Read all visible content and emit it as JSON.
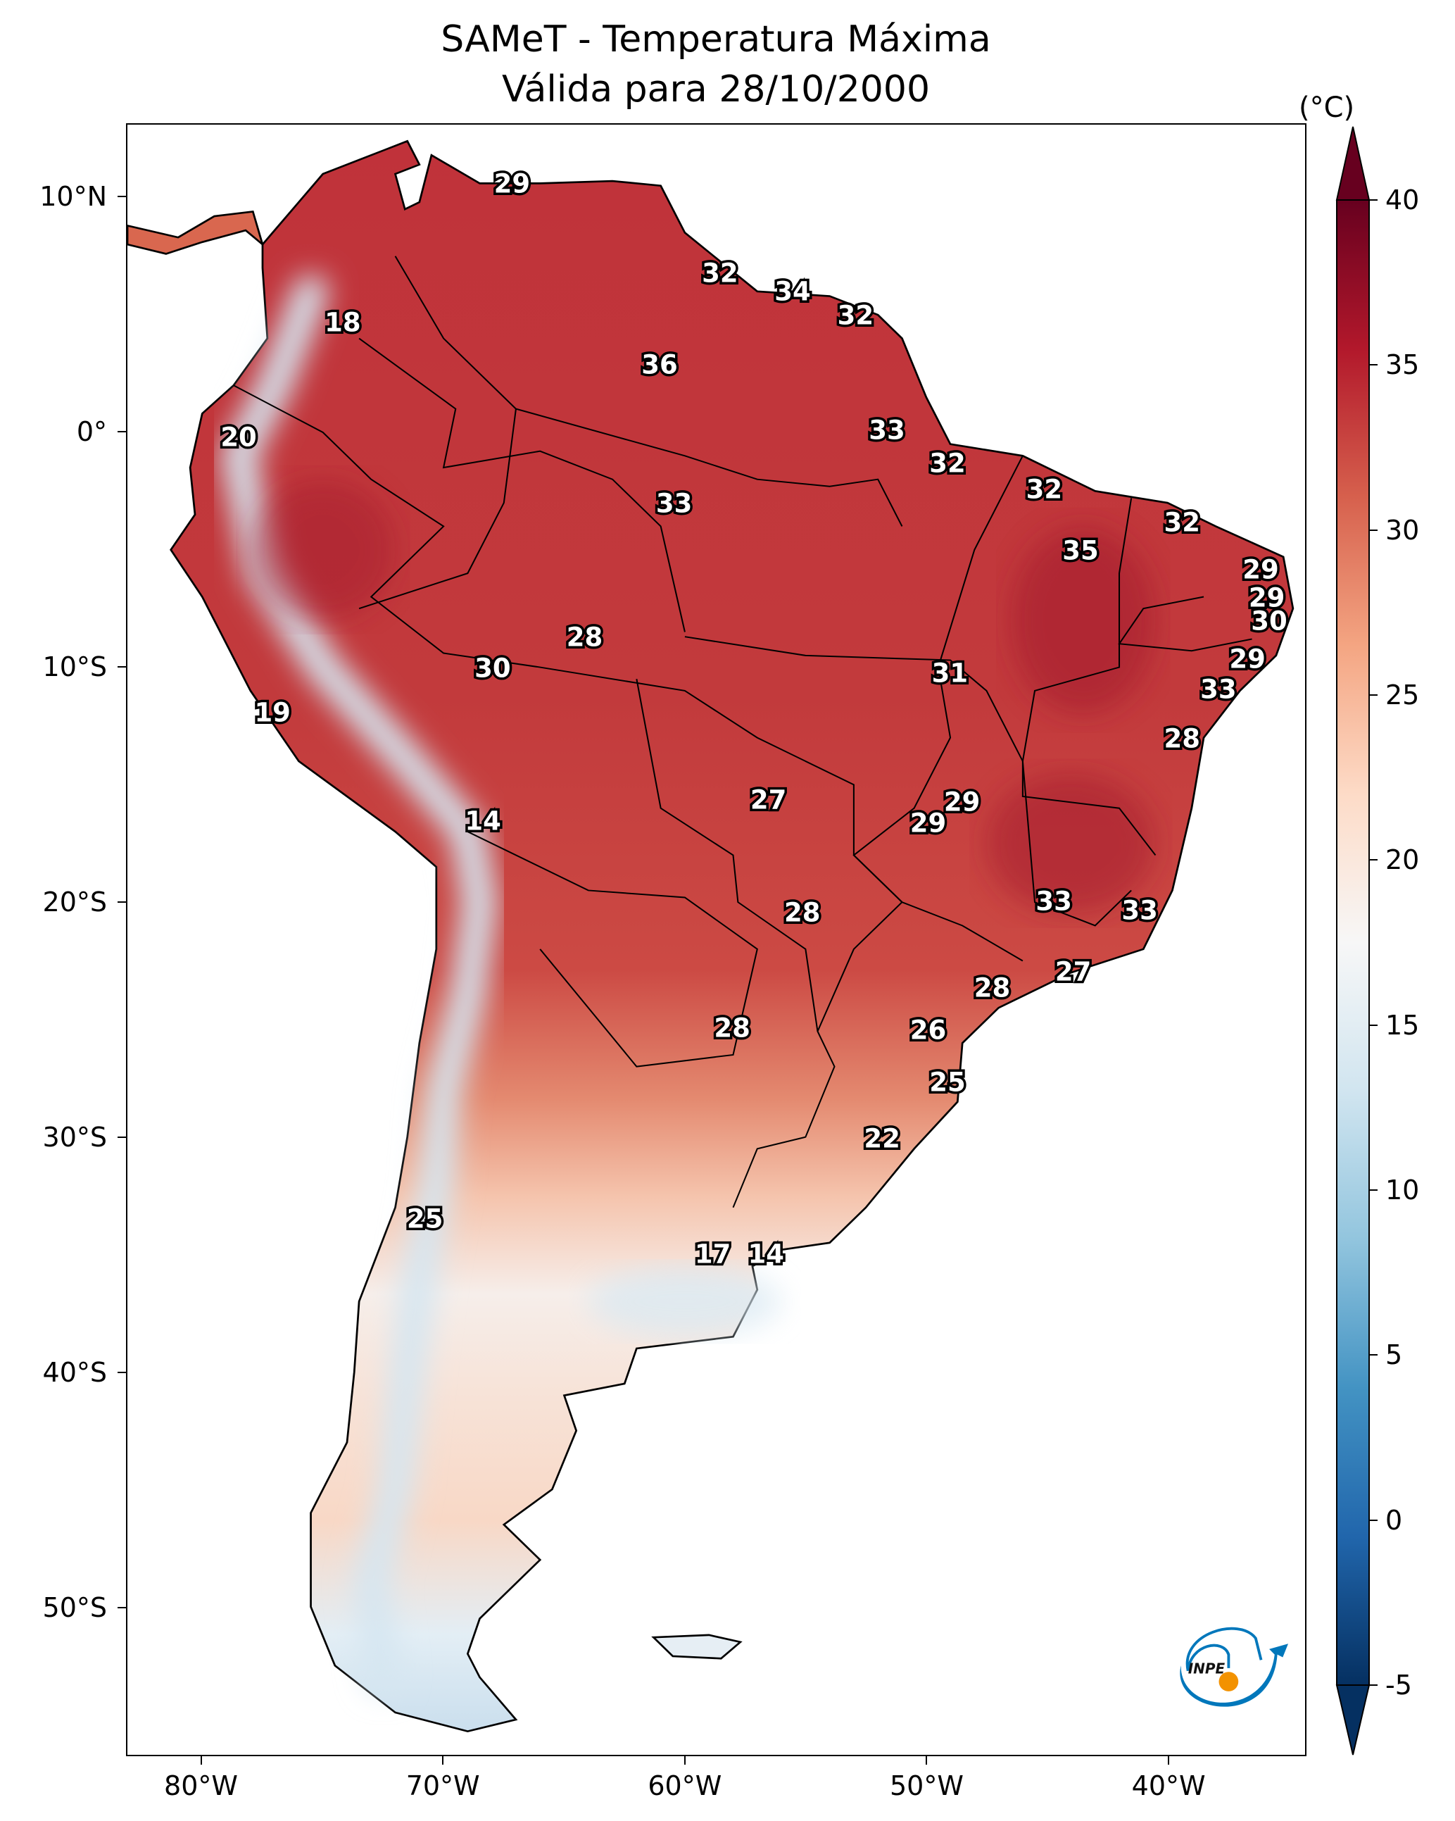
{
  "title": {
    "line1": "SAMeT - Temperatura Máxima",
    "line2": "Válida para 28/10/2000"
  },
  "colorbar": {
    "unit": "(°C)",
    "ticks": [
      40,
      35,
      30,
      25,
      20,
      15,
      10,
      5,
      0,
      -5
    ],
    "min": -5,
    "max": 40,
    "colors": [
      "#053061",
      "#2166ac",
      "#4393c3",
      "#92c5de",
      "#d1e5f0",
      "#f7f7f7",
      "#fddbc7",
      "#f4a582",
      "#d6604d",
      "#b2182b",
      "#67001f"
    ]
  },
  "axes": {
    "x_ticks": [
      {
        "lon": -80,
        "label": "80°W"
      },
      {
        "lon": -70,
        "label": "70°W"
      },
      {
        "lon": -60,
        "label": "60°W"
      },
      {
        "lon": -50,
        "label": "50°W"
      },
      {
        "lon": -40,
        "label": "40°W"
      }
    ],
    "y_ticks": [
      {
        "lat": 10,
        "label": "10°N"
      },
      {
        "lat": 0,
        "label": "0°"
      },
      {
        "lat": -10,
        "label": "10°S"
      },
      {
        "lat": -20,
        "label": "20°S"
      },
      {
        "lat": -30,
        "label": "30°S"
      },
      {
        "lat": -40,
        "label": "40°S"
      },
      {
        "lat": -50,
        "label": "50°S"
      }
    ],
    "extent": {
      "lon": [
        -83.1,
        -34.3
      ],
      "lat": [
        -56.3,
        13.1
      ]
    }
  },
  "station_labels": [
    {
      "v": "29",
      "lon": -67.2,
      "lat": 10.6
    },
    {
      "v": "32",
      "lon": -58.6,
      "lat": 6.8
    },
    {
      "v": "34",
      "lon": -55.6,
      "lat": 6.0
    },
    {
      "v": "32",
      "lon": -53.0,
      "lat": 5.0
    },
    {
      "v": "18",
      "lon": -74.2,
      "lat": 4.7
    },
    {
      "v": "36",
      "lon": -61.1,
      "lat": 2.9
    },
    {
      "v": "20",
      "lon": -78.5,
      "lat": -0.2
    },
    {
      "v": "33",
      "lon": -51.7,
      "lat": 0.1
    },
    {
      "v": "32",
      "lon": -49.2,
      "lat": -1.3
    },
    {
      "v": "32",
      "lon": -45.2,
      "lat": -2.4
    },
    {
      "v": "33",
      "lon": -60.5,
      "lat": -3.0
    },
    {
      "v": "32",
      "lon": -39.5,
      "lat": -3.8
    },
    {
      "v": "35",
      "lon": -43.7,
      "lat": -5.0
    },
    {
      "v": "29",
      "lon": -36.25,
      "lat": -5.8
    },
    {
      "v": "29",
      "lon": -36.0,
      "lat": -7.0
    },
    {
      "v": "30",
      "lon": -35.9,
      "lat": -8.0
    },
    {
      "v": "28",
      "lon": -64.2,
      "lat": -8.7
    },
    {
      "v": "29",
      "lon": -36.8,
      "lat": -9.6
    },
    {
      "v": "30",
      "lon": -68.0,
      "lat": -10.0
    },
    {
      "v": "31",
      "lon": -49.1,
      "lat": -10.2
    },
    {
      "v": "33",
      "lon": -38.0,
      "lat": -10.9
    },
    {
      "v": "19",
      "lon": -77.1,
      "lat": -11.9
    },
    {
      "v": "28",
      "lon": -39.5,
      "lat": -13.0
    },
    {
      "v": "27",
      "lon": -56.6,
      "lat": -15.6
    },
    {
      "v": "29",
      "lon": -48.6,
      "lat": -15.7
    },
    {
      "v": "29",
      "lon": -50.0,
      "lat": -16.6
    },
    {
      "v": "14",
      "lon": -68.4,
      "lat": -16.5
    },
    {
      "v": "33",
      "lon": -44.8,
      "lat": -19.9
    },
    {
      "v": "33",
      "lon": -41.25,
      "lat": -20.3
    },
    {
      "v": "28",
      "lon": -55.2,
      "lat": -20.4
    },
    {
      "v": "27",
      "lon": -44.0,
      "lat": -22.9
    },
    {
      "v": "28",
      "lon": -47.35,
      "lat": -23.6
    },
    {
      "v": "26",
      "lon": -50.0,
      "lat": -25.4
    },
    {
      "v": "28",
      "lon": -58.1,
      "lat": -25.3
    },
    {
      "v": "25",
      "lon": -49.2,
      "lat": -27.6
    },
    {
      "v": "22",
      "lon": -51.9,
      "lat": -30.0
    },
    {
      "v": "25",
      "lon": -70.8,
      "lat": -33.4
    },
    {
      "v": "17",
      "lon": -58.9,
      "lat": -34.9
    },
    {
      "v": "14",
      "lon": -56.7,
      "lat": -34.9
    }
  ],
  "logo": {
    "text": "INPE"
  }
}
